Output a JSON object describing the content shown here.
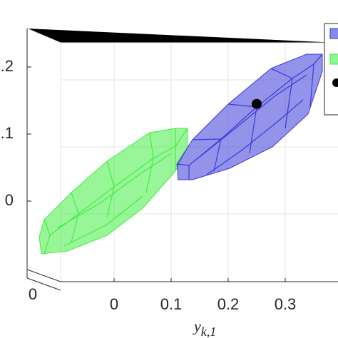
{
  "chart_data": {
    "type": "zonotope",
    "xlabel": "y_k,1",
    "xlim": [
      -0.1,
      0.35
    ],
    "xticks": [
      0,
      0.1,
      0.2,
      0.3
    ],
    "ylim": [
      -0.1,
      0.25
    ],
    "yticks": [
      {
        "value": 0.2,
        "label": "0.2"
      },
      {
        "value": 0.1,
        "label": "0.1"
      },
      0
    ],
    "depth_ticks": [
      0
    ],
    "grid": true,
    "series": [
      {
        "color": "#3a3ad8"
      },
      {
        "color": "#44ee44"
      }
    ],
    "point": {
      "x": 0.25,
      "y": 0.145,
      "color": "#000000"
    }
  }
}
